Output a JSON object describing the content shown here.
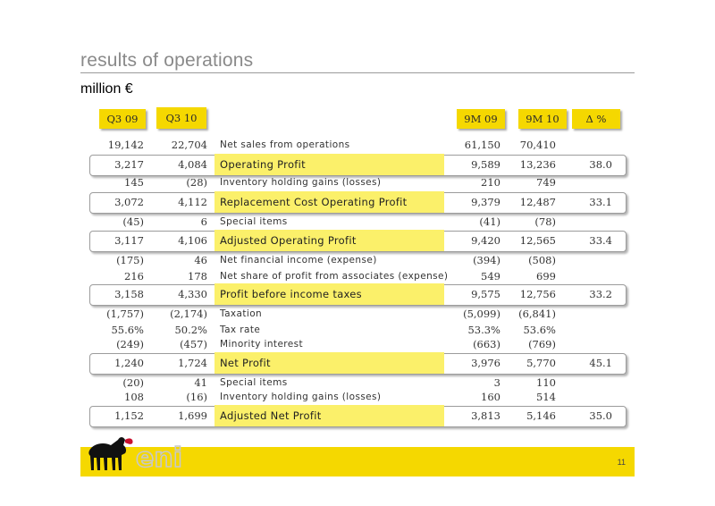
{
  "title": "results of operations",
  "subtitle": "million €",
  "headers": [
    "Q3 09",
    "Q3 10",
    "9M 09",
    "9M 10",
    "Δ %"
  ],
  "rows": [
    {
      "q309": "19,142",
      "q310": "22,704",
      "label": "Net sales from operations",
      "m909": "61,150",
      "m910": "70,410",
      "delta": ""
    },
    {
      "q309": "3,217",
      "q310": "4,084",
      "label": "Operating Profit",
      "m909": "9,589",
      "m910": "13,236",
      "delta": "38.0"
    },
    {
      "q309": "145",
      "q310": "(28)",
      "label": "Inventory holding gains (losses)",
      "m909": "210",
      "m910": "749",
      "delta": ""
    },
    {
      "q309": "3,072",
      "q310": "4,112",
      "label": "Replacement Cost Operating Profit",
      "m909": "9,379",
      "m910": "12,487",
      "delta": "33.1"
    },
    {
      "q309": "(45)",
      "q310": "6",
      "label": "Special items",
      "m909": "(41)",
      "m910": "(78)",
      "delta": ""
    },
    {
      "q309": "3,117",
      "q310": "4,106",
      "label": "Adjusted Operating Profit",
      "m909": "9,420",
      "m910": "12,565",
      "delta": "33.4"
    },
    {
      "q309": "(175)",
      "q310": "46",
      "label": "Net financial income (expense)",
      "m909": "(394)",
      "m910": "(508)",
      "delta": ""
    },
    {
      "q309": "216",
      "q310": "178",
      "label": "Net share of profit from associates (expense)",
      "m909": "549",
      "m910": "699",
      "delta": ""
    },
    {
      "q309": "3,158",
      "q310": "4,330",
      "label": "Profit before income taxes",
      "m909": "9,575",
      "m910": "12,756",
      "delta": "33.2"
    },
    {
      "q309": "(1,757)",
      "q310": "(2,174)",
      "label": "Taxation",
      "m909": "(5,099)",
      "m910": "(6,841)",
      "delta": ""
    },
    {
      "q309": "55.6%",
      "q310": "50.2%",
      "label": "Tax rate",
      "m909": "53.3%",
      "m910": "53.6%",
      "delta": ""
    },
    {
      "q309": "(249)",
      "q310": "(457)",
      "label": "Minority interest",
      "m909": "(663)",
      "m910": "(769)",
      "delta": ""
    },
    {
      "q309": "1,240",
      "q310": "1,724",
      "label": "Net Profit",
      "m909": "3,976",
      "m910": "5,770",
      "delta": "45.1"
    },
    {
      "q309": "(20)",
      "q310": "41",
      "label": "Special items",
      "m909": "3",
      "m910": "110",
      "delta": ""
    },
    {
      "q309": "108",
      "q310": "(16)",
      "label": "Inventory holding gains (losses)",
      "m909": "160",
      "m910": "514",
      "delta": ""
    },
    {
      "q309": "1,152",
      "q310": "1,699",
      "label": "Adjusted Net Profit",
      "m909": "3,813",
      "m910": "5,146",
      "delta": "35.0"
    }
  ],
  "logo_text": "eni",
  "page_number": "11",
  "colors": {
    "brand_yellow": "#f5d800",
    "highlight": "#fbf06a",
    "title_gray": "#8a8a8a"
  }
}
